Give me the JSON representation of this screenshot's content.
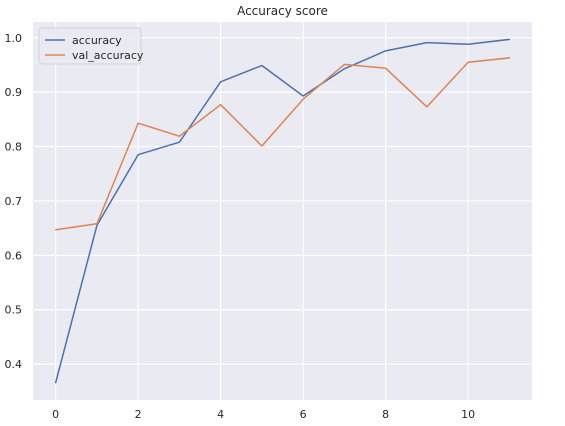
{
  "chart_data": {
    "type": "line",
    "title": "Accuracy score",
    "xlabel": "",
    "ylabel": "",
    "x": [
      0,
      1,
      2,
      3,
      4,
      5,
      6,
      7,
      8,
      9,
      10,
      11
    ],
    "xlim": [
      -0.55,
      11.55
    ],
    "ylim": [
      0.334,
      1.029
    ],
    "xticks": [
      0,
      2,
      4,
      6,
      8,
      10
    ],
    "yticks": [
      0.4,
      0.5,
      0.6,
      0.7,
      0.8,
      0.9,
      1.0
    ],
    "ytick_labels": [
      "0.4",
      "0.5",
      "0.6",
      "0.7",
      "0.8",
      "0.9",
      "1.0"
    ],
    "grid": true,
    "legend_position": "top-left",
    "background": "#eaeaf2",
    "grid_color": "#ffffff",
    "series": [
      {
        "name": "accuracy",
        "color": "#4c72b0",
        "values": [
          0.366,
          0.655,
          0.785,
          0.808,
          0.919,
          0.949,
          0.893,
          0.943,
          0.976,
          0.991,
          0.988,
          0.997
        ]
      },
      {
        "name": "val_accuracy",
        "color": "#dd8452",
        "values": [
          0.647,
          0.658,
          0.843,
          0.819,
          0.877,
          0.801,
          0.887,
          0.951,
          0.944,
          0.873,
          0.955,
          0.963
        ]
      }
    ]
  }
}
